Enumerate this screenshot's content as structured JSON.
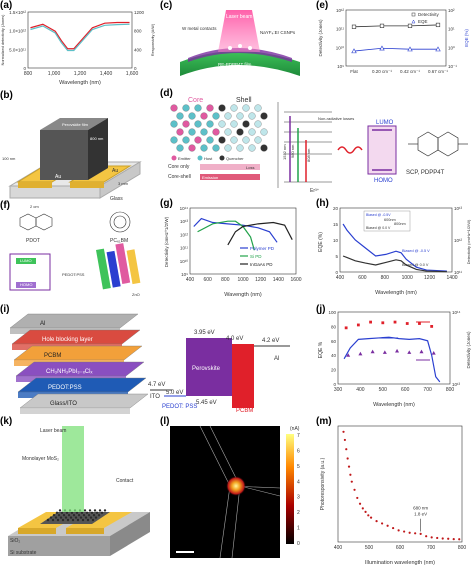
{
  "panels": {
    "a": {
      "label": "(a)"
    },
    "b": {
      "label": "(b)"
    },
    "c": {
      "label": "(c)"
    },
    "d": {
      "label": "(d)"
    },
    "e": {
      "label": "(e)"
    },
    "f": {
      "label": "(f)"
    },
    "g": {
      "label": "(g)"
    },
    "h": {
      "label": "(h)"
    },
    "i": {
      "label": "(i)"
    },
    "j": {
      "label": "(j)"
    },
    "k": {
      "label": "(k)"
    },
    "l": {
      "label": "(l)"
    },
    "m": {
      "label": "(m)"
    }
  },
  "colors": {
    "red": "#e0202a",
    "blue": "#2a3fd0",
    "green": "#21a24a",
    "purple": "#7a2ea0",
    "cyan": "#5dc0c8",
    "gold": "#e6b21a",
    "pink": "#e05aa0"
  },
  "chart_data": [
    {
      "id": "a",
      "type": "line",
      "xlabel": "Wavelength (nm)",
      "ylabel_left": "Normalized detectivity (Jones)",
      "ylabel_right": "Responsivity (A/W)",
      "x_ticks": [
        "800",
        "1,000",
        "1,200",
        "1,400",
        "1,600"
      ],
      "yl_ticks": [
        "1.5×10¹²",
        "1.0×10¹²",
        "5.0×10¹¹",
        "0"
      ],
      "yr_ticks": [
        "1200",
        "800",
        "400",
        "0"
      ],
      "x": [
        800,
        900,
        1000,
        1050,
        1100,
        1150,
        1200,
        1300,
        1400,
        1500,
        1600
      ],
      "series": [
        {
          "values": [
            1.15,
            1.25,
            1.05,
            0.78,
            0.55,
            0.55,
            0.75,
            1.15,
            1.28,
            1.3,
            1.3
          ]
        },
        {
          "values": [
            1.1,
            1.2,
            1.0,
            0.72,
            0.5,
            0.5,
            0.7,
            1.1,
            1.22,
            1.24,
            1.25
          ]
        }
      ],
      "xlim": [
        780,
        1620
      ],
      "ylim": [
        0,
        1.6
      ]
    },
    {
      "id": "e",
      "type": "line",
      "xlabel": "",
      "ylabel_left": "Detectivity (Jones)",
      "ylabel_right": "EQE (%)",
      "categories": [
        "Flat",
        "0.20 cm⁻¹",
        "0.42 cm⁻¹",
        "0.67 cm⁻¹"
      ],
      "series": [
        {
          "name": "Detectivity",
          "values": [
            11.1,
            11.15,
            11.15,
            11.2
          ]
        },
        {
          "name": "EQE",
          "values": [
            9.8,
            9.95,
            9.9,
            9.9
          ]
        }
      ],
      "ylim": [
        9,
        12
      ],
      "yl_ticks": [
        "10¹²",
        "10¹¹",
        "10¹⁰",
        "10⁹"
      ],
      "yr_ticks": [
        "10²",
        "10¹",
        "10⁰",
        "10⁻¹"
      ]
    },
    {
      "id": "g",
      "type": "line",
      "xlabel": "Wavength (nm)",
      "ylabel": "Detectivity (cmHz^1/2/W)",
      "x_ticks": [
        "400",
        "600",
        "800",
        "1000",
        "1200",
        "1400",
        "1600"
      ],
      "y_ticks": [
        "10¹⁴",
        "10¹³",
        "10¹²",
        "10¹¹",
        "10¹⁰",
        "10⁹"
      ],
      "xlim": [
        300,
        1700
      ],
      "ylim": [
        9,
        14
      ],
      "series": [
        {
          "name": "Polymer PD",
          "x": [
            350,
            450,
            600,
            800,
            1000,
            1200,
            1350,
            1450
          ],
          "values": [
            12.6,
            13.2,
            12.9,
            12.8,
            12.7,
            12.5,
            12.2,
            11.4
          ]
        },
        {
          "name": "Si PD",
          "x": [
            400,
            600,
            800,
            900,
            1000,
            1100,
            1150
          ],
          "values": [
            12.2,
            12.8,
            13.0,
            13.0,
            12.6,
            11.8,
            10.8
          ]
        },
        {
          "name": "InGaAs PD",
          "x": [
            800,
            900,
            1000,
            1200,
            1400,
            1550,
            1650
          ],
          "values": [
            11.2,
            12.2,
            12.6,
            12.8,
            12.9,
            12.7,
            11.6
          ]
        }
      ]
    },
    {
      "id": "h",
      "type": "line",
      "xlabel": "Wavelength (nm)",
      "ylabel_left": "EQE (%)",
      "ylabel_right": "Detectivity (cmHz^1/2/W)",
      "x_ticks": [
        "400",
        "600",
        "800",
        "1000",
        "1200",
        "1400"
      ],
      "yl_ticks": [
        "20",
        "15",
        "10",
        "5",
        "0"
      ],
      "yr_ticks": [
        "10¹³",
        "10¹²",
        "10¹¹"
      ],
      "annotations": [
        "Biased @ -0.5V",
        "Biased @ 0.0 V",
        "600nm",
        "800nm",
        "Biased @ -0.5 V",
        "Biased @ 0.0 V"
      ],
      "xlim": [
        350,
        1450
      ],
      "ylim": [
        0,
        20
      ],
      "series": [
        {
          "name": "Biased @ -0.5 V",
          "x": [
            380,
            420,
            500,
            600,
            700,
            800,
            900,
            950,
            1000,
            1100,
            1200,
            1400
          ],
          "values": [
            15,
            13,
            10,
            7.5,
            5,
            5.5,
            6.5,
            6,
            4,
            1.5,
            0.6,
            0.3
          ]
        },
        {
          "name": "Biased @ 0.0 V",
          "x": [
            380,
            420,
            500,
            600,
            700,
            800,
            900,
            950,
            1000,
            1100,
            1200,
            1400
          ],
          "values": [
            5,
            4.5,
            3.5,
            2.8,
            2.2,
            3,
            3.8,
            3.5,
            2.2,
            0.8,
            0.3,
            0.1
          ]
        }
      ]
    },
    {
      "id": "j",
      "type": "line",
      "xlabel": "Wavelength (nm)",
      "ylabel_left": "EQE %",
      "ylabel_right": "Detectivity (Jones)",
      "x_ticks": [
        "300",
        "400",
        "500",
        "600",
        "700",
        "800"
      ],
      "yl_ticks": [
        "100",
        "80",
        "60",
        "40",
        "20",
        "0"
      ],
      "yr_ticks": [
        "10¹⁴",
        "10¹³"
      ],
      "xlim": [
        300,
        850
      ],
      "ylim": [
        0,
        100
      ],
      "series": [
        {
          "name": "EQE",
          "x": [
            330,
            360,
            400,
            450,
            500,
            550,
            600,
            650,
            700,
            740,
            760,
            780,
            800
          ],
          "values": [
            35,
            50,
            62,
            63,
            64,
            65,
            63,
            62,
            63,
            60,
            40,
            10,
            3
          ]
        },
        {
          "name": "Detectivity (red)",
          "x": [
            340,
            400,
            460,
            520,
            580,
            640,
            700,
            760
          ],
          "values": [
            78,
            82,
            86,
            85,
            86,
            84,
            84,
            80
          ]
        },
        {
          "name": "Detectivity (purple)",
          "x": [
            350,
            410,
            470,
            530,
            590,
            650,
            710,
            770
          ],
          "values": [
            40,
            42,
            45,
            44,
            46,
            44,
            45,
            43
          ]
        }
      ]
    },
    {
      "id": "m",
      "type": "scatter",
      "xlabel": "Illumination wavelength (nm)",
      "ylabel": "Photoresponsivity (a.u.)",
      "x_ticks": [
        "400",
        "500",
        "600",
        "700",
        "800"
      ],
      "annotation": "680 nm\n1.8 eV",
      "xlim": [
        380,
        830
      ],
      "ylim": [
        0,
        1
      ],
      "x": [
        400,
        405,
        410,
        415,
        420,
        425,
        430,
        440,
        450,
        460,
        470,
        480,
        490,
        500,
        520,
        540,
        560,
        580,
        600,
        620,
        640,
        660,
        680,
        700,
        720,
        740,
        760,
        780,
        800,
        820
      ],
      "values": [
        0.95,
        0.88,
        0.8,
        0.72,
        0.65,
        0.58,
        0.52,
        0.45,
        0.38,
        0.33,
        0.29,
        0.26,
        0.23,
        0.21,
        0.18,
        0.16,
        0.14,
        0.12,
        0.1,
        0.09,
        0.08,
        0.075,
        0.07,
        0.05,
        0.04,
        0.035,
        0.03,
        0.028,
        0.025,
        0.024
      ]
    }
  ],
  "text": {
    "c": {
      "laser": "Laser beam",
      "metal": "W metal contacts",
      "nayf": "NaYF₄:Er CSNPs",
      "film": "RE-PDPP4T film",
      "pe": "PE substrate"
    },
    "b": {
      "front": "Au",
      "block": "Au",
      "glass": "Glass",
      "d100": "100 nm",
      "d800": "800 nm",
      "d2": "2 cm",
      "d3": "3 mm",
      "film": "Perovskite film"
    },
    "d": {
      "core": "Core",
      "shell": "Shell",
      "coreonly": "Core only",
      "coreshell": "Core-shell",
      "loss": "Loss",
      "emission": "Emission",
      "emitter": "Emitter",
      "host": "Host",
      "quencher": "Quencher",
      "nonrad": "Non-radiative losses",
      "er": "Er³⁺",
      "lumo": "LUMO",
      "homo": "HOMO",
      "mol": "SCP, PDPP4T",
      "e1": "1532 nm",
      "e2": "980 nm",
      "e3": "808 nm"
    },
    "f": {
      "pdot": "PDOT",
      "pc": "PC₆₁BM",
      "lumo": "LUMO",
      "homo": "HOMO",
      "pedot": "PEDOT:PSS",
      "zno": "ZnO"
    },
    "i": {
      "layers": [
        "Al",
        "Hole blocking layer",
        "PCBM",
        "CH₃NH₃PbI₃₋ₓClₓ",
        "PEDOT:PSS",
        "Glass/ITO"
      ],
      "e395": "3.95 eV",
      "e40": "4.0 eV",
      "e42": "4.2 eV",
      "e47": "4.7 eV",
      "e50": "5.0 eV",
      "e545": "5.45 eV",
      "ito": "ITO",
      "pedot": "PEDOT: PSS",
      "perov": "Perovskite",
      "al": "Al",
      "pcbm": "PCBM"
    },
    "k": {
      "laser": "Laser beam",
      "mos2": "Monolayer MoS₂",
      "contact": "Contact",
      "sio2": "SiO₂",
      "si": "Si substrate"
    },
    "l": {
      "unit": "(nA)",
      "ticks": [
        "7",
        "6",
        "5",
        "4",
        "3",
        "2",
        "1",
        "0"
      ]
    }
  }
}
